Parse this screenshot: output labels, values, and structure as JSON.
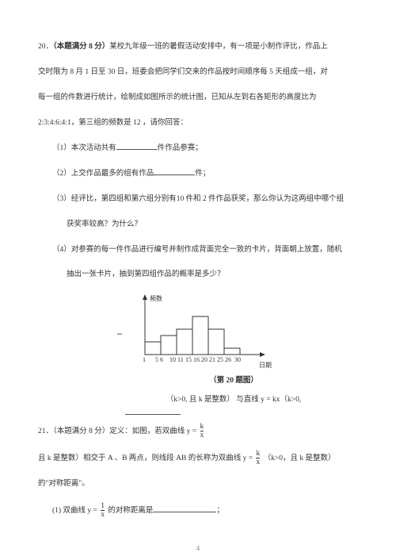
{
  "q20": {
    "number": "20．",
    "title_bold": "（本题满分 8 分）",
    "l1": "某校九年级一班的暑假活动安排中，有一项是小制作评比，作品上",
    "l2": "交时限为 8 月 1 日至 30 日，班委会把同学们交来的作品按时间顺序每 5 天组成一组，对",
    "l3": "每一组的件数进行统计，绘制成如图所示的统计图，已知从左到右各矩形的高度比为",
    "l4": "2:3:4:6:4:1，第三组的频数是 12 ，请你回答：",
    "p1a": "（1）本次活动共有",
    "p1b": "件作品参赛；",
    "p2a": "（2）上交作品最多的组有作品",
    "p2b": "件；",
    "p3": "（3）经评比，第四组和第六组分别有10 件和 2 件作品获奖，那么你认为这两组中哪个组",
    "p3b": "获奖率较高？为什么？",
    "p4": "（4）对参赛的每一件作品进行编号并制作成背面完全一致的卡片，背面朝上放置，随机",
    "p4b": "抽出一张卡片，抽到第四组作品的概率是多少？",
    "chart": {
      "y_label": "频数",
      "x_label": "日期",
      "caption": "（第 20 题图）",
      "ticks": [
        "1",
        "5 6",
        "10",
        "11",
        "15",
        "16",
        "20",
        "21",
        "25",
        "26",
        "30"
      ],
      "bar_color": "#ffffff",
      "stroke": "#333333",
      "heights": [
        16,
        24,
        32,
        48,
        32,
        8
      ]
    },
    "eq_after": "（k>0, 且 k 是整数）  与直线 y = kx（k>0,"
  },
  "q21": {
    "number": "21．",
    "l1a": "（本题满分 8 分）定义：如图，若双曲线 y =",
    "frac1_n": "k",
    "frac1_d": "x",
    "l2a": "且 k 是整数）相交于 A 、B 两点，则线段 AB 的长称为双曲线 y =",
    "l2b": "（k>0，且 k 是整数）",
    "l3": "的\"对称距离\"。",
    "p1a": "(1)  双曲线 y =",
    "frac2_n": "1",
    "frac2_d": "x",
    "p1b": "的对称距离是",
    "p1c": "；"
  },
  "page": "4"
}
